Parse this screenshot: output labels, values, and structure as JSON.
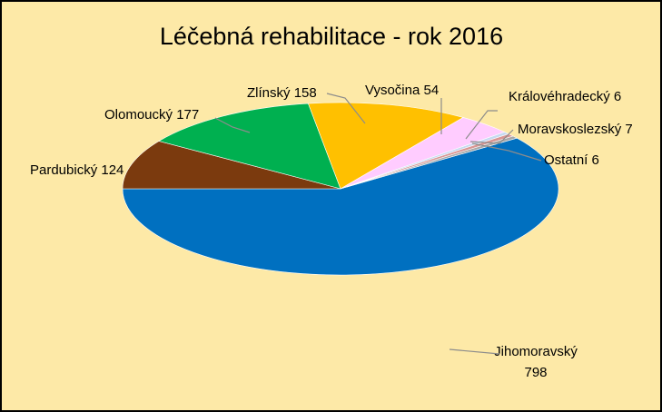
{
  "chart_data": {
    "type": "pie",
    "title": "Léčebná rehabilitace - rok 2016",
    "categories": [
      "Jihomoravský",
      "Pardubický",
      "Olomoucký",
      "Zlínský",
      "Vysočina",
      "Královéhradecký",
      "Moravskoslezský",
      "Ostatní"
    ],
    "values": [
      798,
      124,
      177,
      158,
      54,
      6,
      7,
      6
    ],
    "colors": [
      "#0070c0",
      "#7b3a0e",
      "#00b050",
      "#ffc000",
      "#ffccff",
      "#c6d9f1",
      "#d99694",
      "#a6a6a6"
    ]
  }
}
